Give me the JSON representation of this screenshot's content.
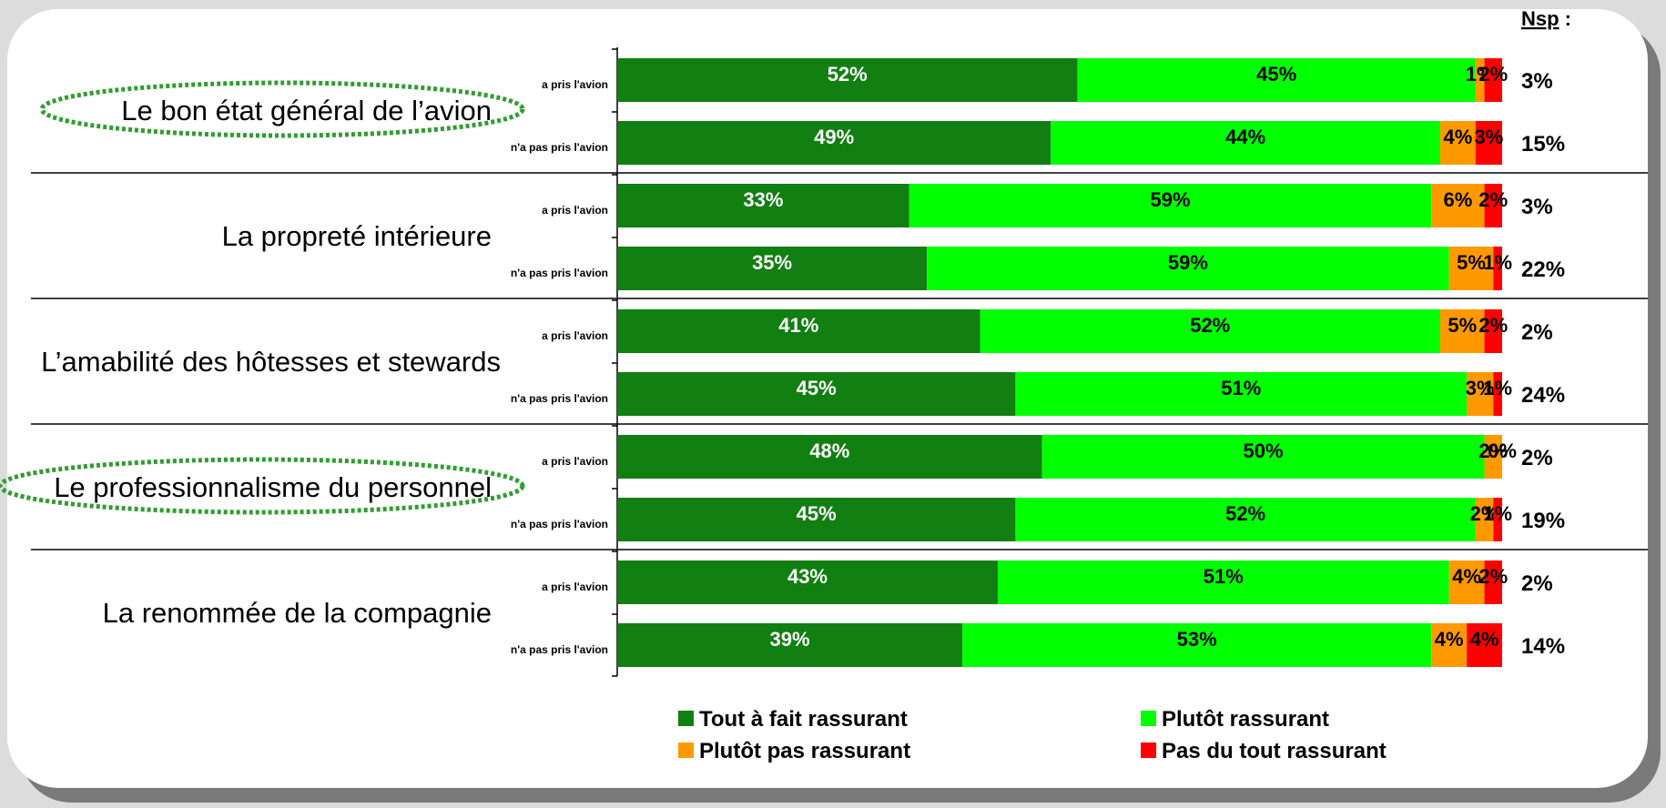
{
  "chart_data": {
    "type": "bar",
    "orientation": "horizontal",
    "stacked": true,
    "xlim": [
      0,
      100
    ],
    "nsp_header": "Nsp",
    "nsp_header_suffix": " :",
    "legend_placement": "bottom",
    "series": [
      {
        "name": "Tout à fait rassurant",
        "color": "#117f11",
        "label_color": "#ffffff"
      },
      {
        "name": "Plutôt rassurant",
        "color": "#00ff00",
        "label_color": "#000000"
      },
      {
        "name": "Plutôt pas rassurant",
        "color": "#ff9900",
        "label_color": "#000000"
      },
      {
        "name": "Pas du tout rassurant",
        "color": "#ff0000",
        "label_color": "#000000"
      }
    ],
    "categories": [
      {
        "label": "Le bon état général de l’avion",
        "highlighted": true,
        "rows": [
          {
            "label": "a pris l'avion",
            "values": [
              52,
              45,
              1,
              2
            ],
            "value_labels": [
              "52%",
              "45%",
              "1%",
              "2%"
            ],
            "nsp": "3%"
          },
          {
            "label": "n'a pas pris l'avion",
            "values": [
              49,
              44,
              4,
              3
            ],
            "value_labels": [
              "49%",
              "44%",
              "4%",
              "3%"
            ],
            "nsp": "15%"
          }
        ]
      },
      {
        "label": "La propreté intérieure",
        "highlighted": false,
        "rows": [
          {
            "label": "a pris l'avion",
            "values": [
              33,
              59,
              6,
              2
            ],
            "value_labels": [
              "33%",
              "59%",
              "6%",
              "2%"
            ],
            "nsp": "3%"
          },
          {
            "label": "n'a pas pris l'avion",
            "values": [
              35,
              59,
              5,
              1
            ],
            "value_labels": [
              "35%",
              "59%",
              "5%",
              "1%"
            ],
            "nsp": "22%"
          }
        ]
      },
      {
        "label": "L’amabilité des hôtesses et stewards",
        "highlighted": false,
        "rows": [
          {
            "label": "a pris l'avion",
            "values": [
              41,
              52,
              5,
              2
            ],
            "value_labels": [
              "41%",
              "52%",
              "5%",
              "2%"
            ],
            "nsp": "2%"
          },
          {
            "label": "n'a pas pris l'avion",
            "values": [
              45,
              51,
              3,
              1
            ],
            "value_labels": [
              "45%",
              "51%",
              "3%",
              "1%"
            ],
            "nsp": "24%"
          }
        ]
      },
      {
        "label": "Le professionnalisme du personnel",
        "highlighted": true,
        "rows": [
          {
            "label": "a pris l'avion",
            "values": [
              48,
              50,
              2,
              0
            ],
            "value_labels": [
              "48%",
              "50%",
              "2%",
              "0%"
            ],
            "nsp": "2%"
          },
          {
            "label": "n'a pas pris l'avion",
            "values": [
              45,
              52,
              2,
              1
            ],
            "value_labels": [
              "45%",
              "52%",
              "2%",
              "1%"
            ],
            "nsp": "19%"
          }
        ]
      },
      {
        "label": "La renommée de la compagnie",
        "highlighted": false,
        "rows": [
          {
            "label": "a pris l'avion",
            "values": [
              43,
              51,
              4,
              2
            ],
            "value_labels": [
              "43%",
              "51%",
              "4%",
              "2%"
            ],
            "nsp": "2%"
          },
          {
            "label": "n'a pas pris l'avion",
            "values": [
              39,
              53,
              4,
              4
            ],
            "value_labels": [
              "39%",
              "53%",
              "4%",
              "4%"
            ],
            "nsp": "14%"
          }
        ]
      }
    ]
  }
}
